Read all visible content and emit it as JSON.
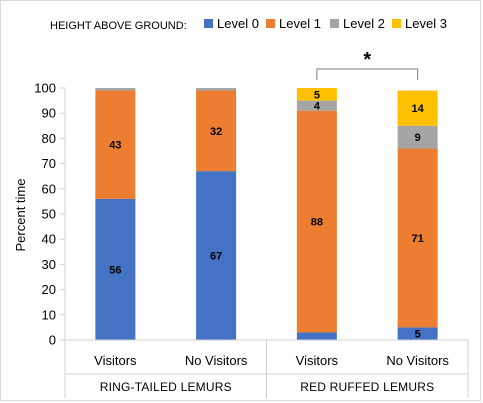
{
  "chart_data": {
    "type": "bar",
    "stacked": true,
    "legend_title": "HEIGHT ABOVE GROUND:",
    "legend_position": "top",
    "ylabel": "Percent time",
    "ylim": [
      0,
      100
    ],
    "yticks": [
      0,
      10,
      20,
      30,
      40,
      50,
      60,
      70,
      80,
      90,
      100
    ],
    "grid": false,
    "categories": [
      "Visitors",
      "No Visitors",
      "Visitors",
      "No Visitors"
    ],
    "groups": [
      {
        "label": "RING-TAILED LEMURS",
        "categories": [
          0,
          1
        ]
      },
      {
        "label": "RED RUFFED LEMURS",
        "categories": [
          2,
          3
        ]
      }
    ],
    "series": [
      {
        "name": "Level 0",
        "color": "#4472c4",
        "values": [
          56,
          67,
          3,
          5
        ],
        "labels": [
          "56",
          "67",
          "",
          "5"
        ]
      },
      {
        "name": "Level 1",
        "color": "#ed7d31",
        "values": [
          43,
          32,
          88,
          71
        ],
        "labels": [
          "43",
          "32",
          "88",
          "71"
        ]
      },
      {
        "name": "Level 2",
        "color": "#a5a5a5",
        "values": [
          1,
          1,
          4,
          9
        ],
        "labels": [
          "",
          "",
          "4",
          "9"
        ]
      },
      {
        "name": "Level 3",
        "color": "#ffc000",
        "values": [
          0,
          0,
          5,
          14
        ],
        "labels": [
          "",
          "",
          "5",
          "14"
        ]
      }
    ],
    "annotations": [
      {
        "text": "*",
        "type": "significance-bracket",
        "between": [
          2,
          3
        ]
      }
    ]
  }
}
